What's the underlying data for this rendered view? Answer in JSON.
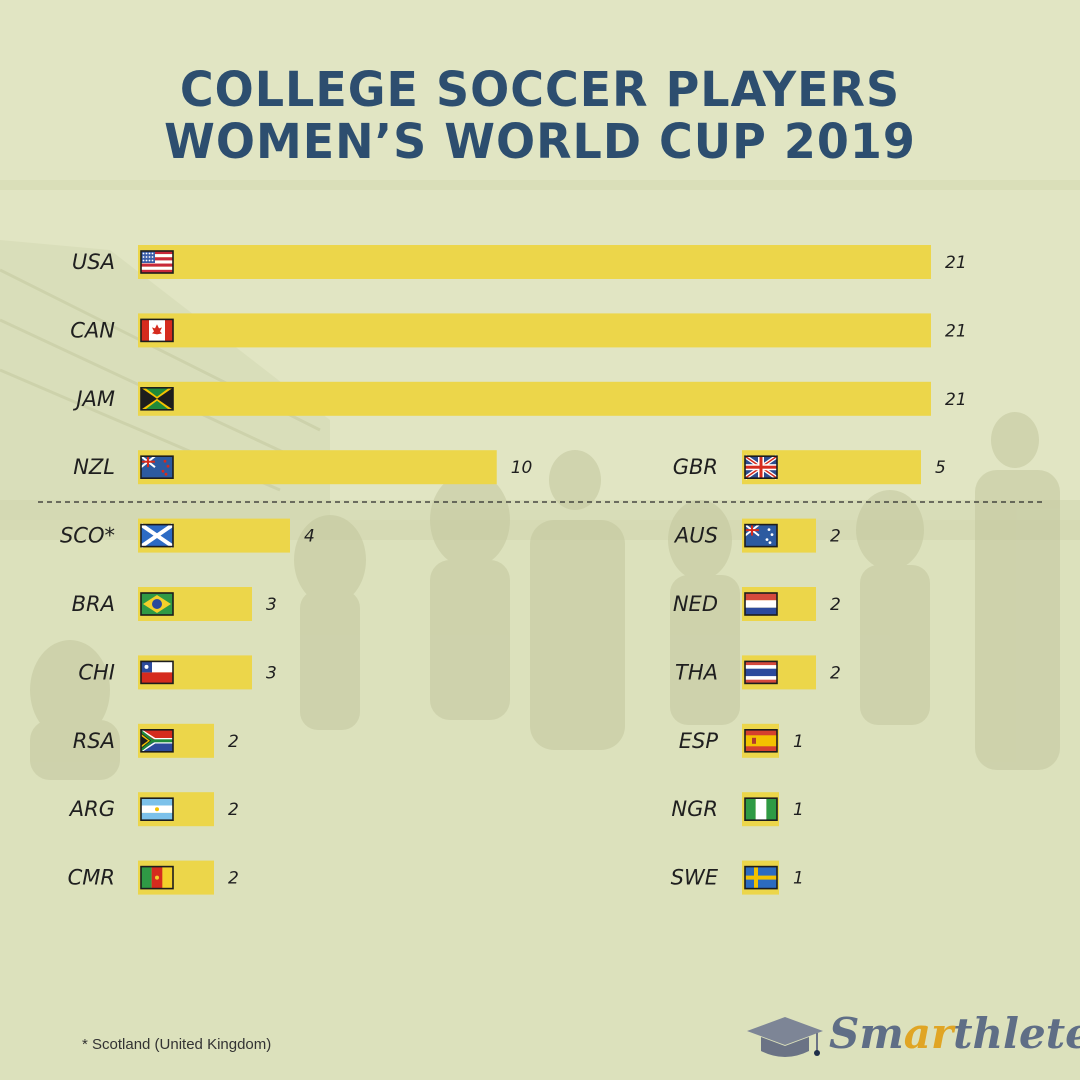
{
  "title": {
    "line1": "COLLEGE SOCCER PLAYERS",
    "line2": "WOMEN’S WORLD CUP 2019"
  },
  "footnote": "* Scotland (United Kingdom)",
  "brand": {
    "part1": "Sm",
    "accent": "ar",
    "part2": "thlete"
  },
  "colors": {
    "bar": "#ecd64a",
    "title": "#2d4e6f",
    "background": "#e1e5c3"
  },
  "chart_data": {
    "type": "bar",
    "orientation": "horizontal",
    "value_scale_max": 21,
    "groups": [
      {
        "name": "top",
        "rows": [
          {
            "code": "USA",
            "value": 21,
            "value_label": "21",
            "flag": "usa-flag-icon"
          },
          {
            "code": "CAN",
            "value": 21,
            "value_label": "21",
            "flag": "canada-flag-icon"
          },
          {
            "code": "JAM",
            "value": 21,
            "value_label": "21",
            "flag": "jamaica-flag-icon"
          }
        ]
      },
      {
        "name": "left",
        "rows": [
          {
            "code": "NZL",
            "value": 10,
            "value_label": "10",
            "flag": "new-zealand-flag-icon"
          },
          {
            "code": "SCO*",
            "value": 4,
            "value_label": "4",
            "flag": "scotland-flag-icon"
          },
          {
            "code": "BRA",
            "value": 3,
            "value_label": "3",
            "flag": "brazil-flag-icon"
          },
          {
            "code": "CHI",
            "value": 3,
            "value_label": "3",
            "flag": "chile-flag-icon"
          },
          {
            "code": "RSA",
            "value": 2,
            "value_label": "2",
            "flag": "south-africa-flag-icon"
          },
          {
            "code": "ARG",
            "value": 2,
            "value_label": "2",
            "flag": "argentina-flag-icon"
          },
          {
            "code": "CMR",
            "value": 2,
            "value_label": "2",
            "flag": "cameroon-flag-icon"
          }
        ]
      },
      {
        "name": "right",
        "rows": [
          {
            "code": "GBR",
            "value": 5,
            "value_label": "5",
            "flag": "uk-flag-icon"
          },
          {
            "code": "AUS",
            "value": 2,
            "value_label": "2",
            "flag": "australia-flag-icon"
          },
          {
            "code": "NED",
            "value": 2,
            "value_label": "2",
            "flag": "netherlands-flag-icon"
          },
          {
            "code": "THA",
            "value": 2,
            "value_label": "2",
            "flag": "thailand-flag-icon"
          },
          {
            "code": "ESP",
            "value": 1,
            "value_label": "1",
            "flag": "spain-flag-icon"
          },
          {
            "code": "NGR",
            "value": 1,
            "value_label": "1",
            "flag": "nigeria-flag-icon"
          },
          {
            "code": "SWE",
            "value": 1,
            "value_label": "1",
            "flag": "sweden-flag-icon"
          }
        ]
      }
    ],
    "divider": "dashed line between JAM and SCO*"
  }
}
